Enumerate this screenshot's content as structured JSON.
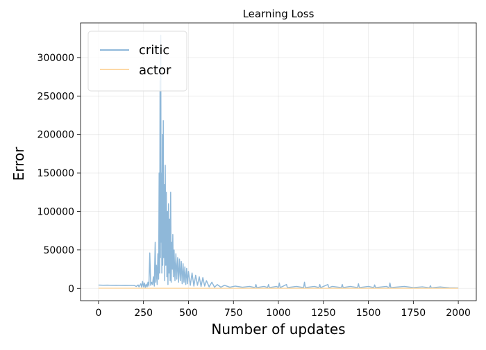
{
  "chart_data": {
    "type": "line",
    "title": "Learning Loss",
    "xlabel": "Number of updates",
    "ylabel": "Error",
    "xlim": [
      -100,
      2100
    ],
    "ylim": [
      -16000,
      345000
    ],
    "x_ticks": [
      0,
      250,
      500,
      750,
      1000,
      1250,
      1500,
      1750,
      2000
    ],
    "x_tick_labels": [
      "0",
      "250",
      "500",
      "750",
      "1000",
      "1250",
      "1500",
      "1750",
      "2000"
    ],
    "y_ticks": [
      0,
      50000,
      100000,
      150000,
      200000,
      250000,
      300000
    ],
    "y_tick_labels": [
      "0",
      "50000",
      "100000",
      "150000",
      "200000",
      "250000",
      "300000"
    ],
    "grid": true,
    "legend_position": "top-left",
    "series": [
      {
        "name": "critic",
        "color": "#8fb8d9",
        "points": [
          [
            0,
            4300
          ],
          [
            25,
            4100
          ],
          [
            50,
            4200
          ],
          [
            75,
            4000
          ],
          [
            100,
            4100
          ],
          [
            125,
            3900
          ],
          [
            150,
            4000
          ],
          [
            175,
            3800
          ],
          [
            200,
            3700
          ],
          [
            210,
            2500
          ],
          [
            220,
            4500
          ],
          [
            225,
            2000
          ],
          [
            235,
            6000
          ],
          [
            240,
            1500
          ],
          [
            245,
            9000
          ],
          [
            250,
            2000
          ],
          [
            255,
            7000
          ],
          [
            260,
            1000
          ],
          [
            265,
            5500
          ],
          [
            270,
            2000
          ],
          [
            275,
            8000
          ],
          [
            280,
            3000
          ],
          [
            285,
            46000
          ],
          [
            290,
            4000
          ],
          [
            295,
            8000
          ],
          [
            300,
            5000
          ],
          [
            305,
            15000
          ],
          [
            310,
            3000
          ],
          [
            315,
            60000
          ],
          [
            318,
            8000
          ],
          [
            322,
            30000
          ],
          [
            326,
            5000
          ],
          [
            330,
            45000
          ],
          [
            334,
            12000
          ],
          [
            337,
            150000
          ],
          [
            340,
            20000
          ],
          [
            342,
            270000
          ],
          [
            344,
            40000
          ],
          [
            346,
            329000
          ],
          [
            348,
            60000
          ],
          [
            350,
            150000
          ],
          [
            352,
            20000
          ],
          [
            355,
            200000
          ],
          [
            357,
            30000
          ],
          [
            360,
            218000
          ],
          [
            362,
            40000
          ],
          [
            365,
            135000
          ],
          [
            368,
            10000
          ],
          [
            371,
            160000
          ],
          [
            374,
            30000
          ],
          [
            377,
            125000
          ],
          [
            380,
            15000
          ],
          [
            383,
            100000
          ],
          [
            386,
            5000
          ],
          [
            389,
            110000
          ],
          [
            392,
            20000
          ],
          [
            395,
            90000
          ],
          [
            398,
            10000
          ],
          [
            401,
            125000
          ],
          [
            404,
            8000
          ],
          [
            407,
            60000
          ],
          [
            410,
            25000
          ],
          [
            413,
            70000
          ],
          [
            416,
            15000
          ],
          [
            420,
            50000
          ],
          [
            425,
            10000
          ],
          [
            430,
            45000
          ],
          [
            435,
            12000
          ],
          [
            440,
            40000
          ],
          [
            445,
            8000
          ],
          [
            450,
            38000
          ],
          [
            455,
            10000
          ],
          [
            460,
            35000
          ],
          [
            465,
            6000
          ],
          [
            470,
            32000
          ],
          [
            475,
            8000
          ],
          [
            480,
            28000
          ],
          [
            485,
            5000
          ],
          [
            490,
            26000
          ],
          [
            495,
            6000
          ],
          [
            500,
            22000
          ],
          [
            510,
            4000
          ],
          [
            520,
            20000
          ],
          [
            530,
            3000
          ],
          [
            540,
            17000
          ],
          [
            550,
            4000
          ],
          [
            560,
            15000
          ],
          [
            570,
            2500
          ],
          [
            580,
            14000
          ],
          [
            590,
            3000
          ],
          [
            600,
            10000
          ],
          [
            615,
            2000
          ],
          [
            630,
            8000
          ],
          [
            645,
            1500
          ],
          [
            660,
            5000
          ],
          [
            680,
            1500
          ],
          [
            700,
            4000
          ],
          [
            730,
            1500
          ],
          [
            760,
            3000
          ],
          [
            800,
            1500
          ],
          [
            840,
            2500
          ],
          [
            870,
            1000
          ],
          [
            875,
            5000
          ],
          [
            880,
            1000
          ],
          [
            920,
            2500
          ],
          [
            940,
            1200
          ],
          [
            945,
            5000
          ],
          [
            950,
            1000
          ],
          [
            990,
            2500
          ],
          [
            1000,
            1000
          ],
          [
            1005,
            7000
          ],
          [
            1010,
            1000
          ],
          [
            1045,
            5000
          ],
          [
            1050,
            1000
          ],
          [
            1100,
            2500
          ],
          [
            1140,
            1000
          ],
          [
            1145,
            8000
          ],
          [
            1150,
            1000
          ],
          [
            1200,
            2500
          ],
          [
            1225,
            1000
          ],
          [
            1230,
            5000
          ],
          [
            1235,
            1000
          ],
          [
            1275,
            5000
          ],
          [
            1280,
            1000
          ],
          [
            1300,
            2500
          ],
          [
            1350,
            1000
          ],
          [
            1355,
            5000
          ],
          [
            1360,
            1000
          ],
          [
            1400,
            2500
          ],
          [
            1440,
            1000
          ],
          [
            1445,
            6000
          ],
          [
            1450,
            1000
          ],
          [
            1500,
            2500
          ],
          [
            1530,
            1000
          ],
          [
            1535,
            4500
          ],
          [
            1540,
            1000
          ],
          [
            1600,
            2500
          ],
          [
            1615,
            1000
          ],
          [
            1620,
            7000
          ],
          [
            1625,
            1000
          ],
          [
            1700,
            2500
          ],
          [
            1750,
            1000
          ],
          [
            1800,
            2000
          ],
          [
            1840,
            800
          ],
          [
            1845,
            3500
          ],
          [
            1850,
            800
          ],
          [
            1900,
            1800
          ],
          [
            1950,
            800
          ],
          [
            2000,
            600
          ]
        ]
      },
      {
        "name": "actor",
        "color": "#fdd9a6",
        "points": [
          [
            0,
            200
          ],
          [
            500,
            150
          ],
          [
            1000,
            120
          ],
          [
            1500,
            100
          ],
          [
            2000,
            80
          ]
        ]
      }
    ]
  }
}
